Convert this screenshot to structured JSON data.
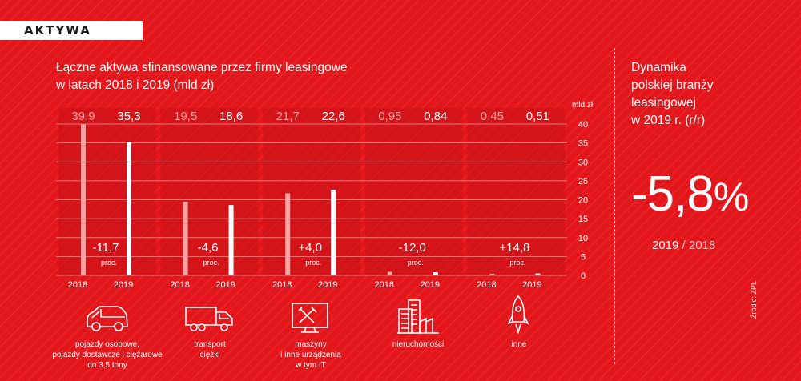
{
  "section_tag": "AKTYWA",
  "title_line1": "Łączne aktywa sfinansowane przez firmy leasingowe",
  "title_line2": "w latach 2018 i 2019 (mld zł)",
  "dynamics": {
    "title_lines": [
      "Dynamika",
      "polskiej branży",
      "leasingowej",
      "w 2019 r. (r/r)"
    ],
    "value": "-5,8",
    "unit": "%",
    "year_current": "2019",
    "separator": "/",
    "year_previous": "2018"
  },
  "source": "Źródło: ZPL",
  "colors": {
    "background": "#e3161c",
    "bar_2018": "#f5a3a3",
    "bar_2019": "#ffffff",
    "band": "#c81218"
  },
  "categories": [
    {
      "label_lines": [
        "pojazdy osobowe,",
        "pojazdy dostawcze i ciężarowe",
        "do 3,5 tony"
      ],
      "icon": "car-icon"
    },
    {
      "label_lines": [
        "transport",
        "ciężki"
      ],
      "icon": "truck-icon"
    },
    {
      "label_lines": [
        "maszyny",
        "i inne urządzenia",
        "w tym IT"
      ],
      "icon": "tools-monitor-icon"
    },
    {
      "label_lines": [
        "nieruchomości"
      ],
      "icon": "buildings-icon"
    },
    {
      "label_lines": [
        "inne"
      ],
      "icon": "rocket-icon"
    }
  ],
  "chart_data": {
    "type": "bar",
    "categories": [
      "pojazdy osobowe, pojazdy dostawcze i ciężarowe do 3,5 tony",
      "transport ciężki",
      "maszyny i inne urządzenia w tym IT",
      "nieruchomości",
      "inne"
    ],
    "series": [
      {
        "name": "2018",
        "values": [
          39.9,
          19.5,
          21.7,
          0.95,
          0.45
        ],
        "labels": [
          "39,9",
          "19,5",
          "21,7",
          "0,95",
          "0,45"
        ]
      },
      {
        "name": "2019",
        "values": [
          35.3,
          18.6,
          22.6,
          0.84,
          0.51
        ],
        "labels": [
          "35,3",
          "18,6",
          "22,6",
          "0,84",
          "0,51"
        ]
      }
    ],
    "changes": [
      "-11,7",
      "-4,6",
      "+4,0",
      "-12,0",
      "+14,8"
    ],
    "change_unit": "proc.",
    "yunit": "mld zł",
    "ylim": [
      0,
      40
    ],
    "yticks": [
      "0",
      "5",
      "10",
      "15",
      "20",
      "25",
      "30",
      "35",
      "40"
    ],
    "grid": true
  }
}
